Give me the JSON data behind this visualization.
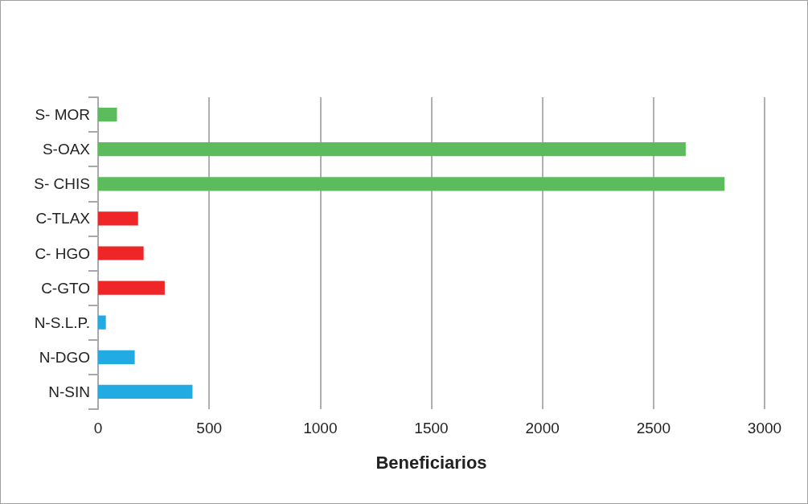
{
  "chart_data": {
    "type": "bar",
    "orientation": "horizontal",
    "xlabel": "Beneficiarios",
    "categories": [
      "S- MOR",
      "S-OAX",
      "S- CHIS",
      "C-TLAX",
      "C- HGO",
      "C-GTO",
      "N-S.L.P.",
      "N-DGO",
      "N-SIN"
    ],
    "values": [
      85,
      2645,
      2820,
      180,
      205,
      300,
      35,
      165,
      425
    ],
    "colors": [
      "#5cbb5c",
      "#5cbb5c",
      "#5cbb5c",
      "#ee2628",
      "#ee2628",
      "#ee2628",
      "#21abe2",
      "#21abe2",
      "#21abe2"
    ],
    "xlim": [
      0,
      3000
    ],
    "xticks": [
      0,
      500,
      1000,
      1500,
      2000,
      2500,
      3000
    ],
    "grid": "x"
  }
}
